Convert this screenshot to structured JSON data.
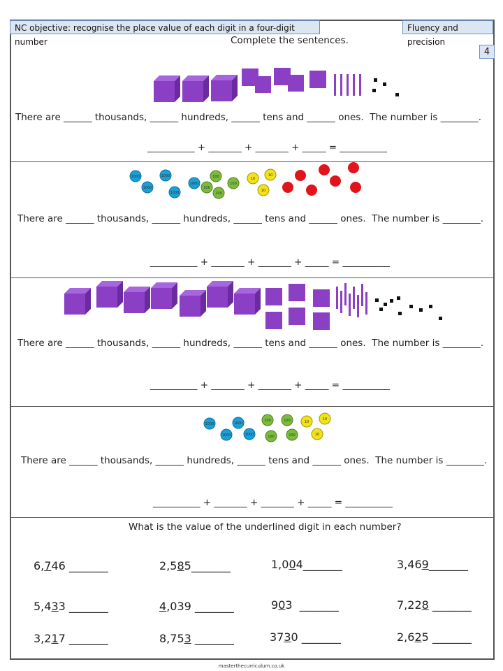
{
  "header": {
    "objective": "NC objective: recognise the place value of each digit in a four-digit number",
    "category": "Fluency and precision",
    "page_number": "4"
  },
  "section1_title": "Complete the sentences.",
  "sentence": {
    "there_are": "There are",
    "blank_short": "______",
    "thousands": "thousands,",
    "hundreds": "hundreds,",
    "tens_and": "tens and",
    "ones": "ones.",
    "number_is": "The number is",
    "blank_answer": "________."
  },
  "equation": {
    "blank_long": "__________",
    "plus": "+",
    "blank_mid": "_______",
    "blank_small": "_____",
    "equals": "=",
    "blank_total": "__________"
  },
  "section2_title": "What is the value of the underlined digit in each number?",
  "answer_blank": "_______",
  "numbers": [
    {
      "pre": "6,",
      "u": "7",
      "post": "46"
    },
    {
      "pre": "2,5",
      "u": "8",
      "post": "5"
    },
    {
      "pre": "1,0",
      "u": "0",
      "post": "4"
    },
    {
      "pre": "3,46",
      "u": "9",
      "post": ""
    },
    {
      "pre": "5,4",
      "u": "3",
      "post": "3"
    },
    {
      "pre": "",
      "u": "4",
      "post": ",039"
    },
    {
      "pre": "9",
      "u": "0",
      "post": "3"
    },
    {
      "pre": "7,22",
      "u": "8",
      "post": ""
    },
    {
      "pre": "3,2",
      "u": "1",
      "post": "7"
    },
    {
      "pre": "8,75",
      "u": "3",
      "post": ""
    },
    {
      "pre": "37",
      "u": "3",
      "post": "0"
    },
    {
      "pre": "2,6",
      "u": "2",
      "post": "5"
    }
  ],
  "counter_labels": {
    "thousand": "1000",
    "hundred": "100",
    "ten": "10"
  },
  "footer": "masterthecurriculum.co.uk",
  "colors": {
    "purple": "#8a3fc4",
    "blue_counter": "#1aa0d8",
    "green_counter": "#7bbd3a",
    "yellow_counter": "#f2e21a",
    "red_counter": "#e0141a"
  }
}
